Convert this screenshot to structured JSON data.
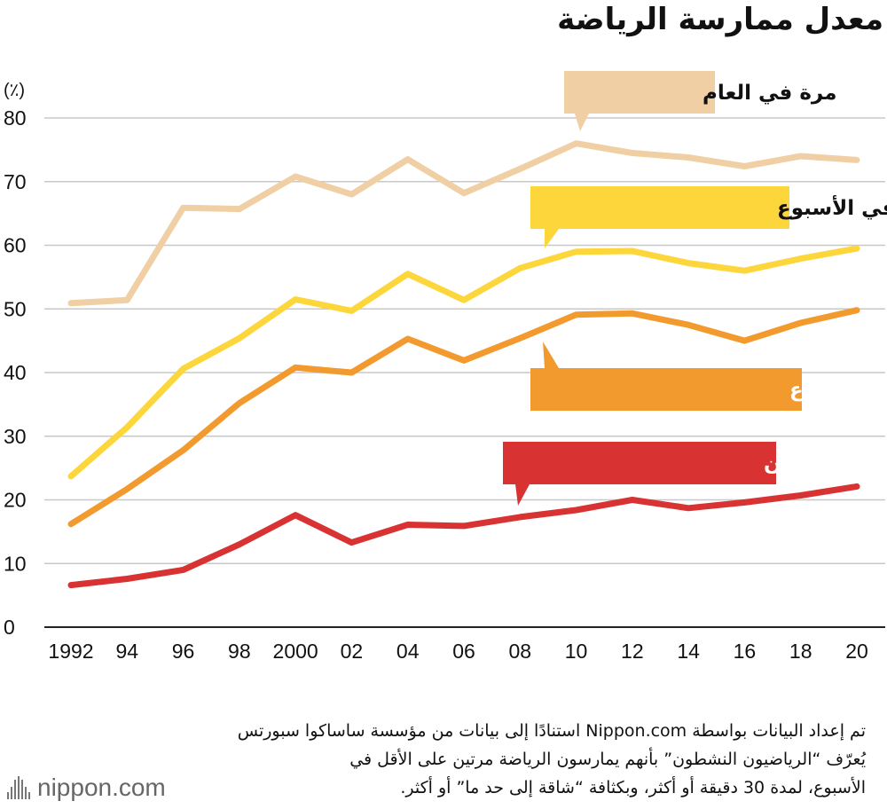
{
  "chart_data": {
    "type": "line",
    "title": "معدل ممارسة الرياضة",
    "ylabel": "(٪)",
    "ylim": [
      0,
      80
    ],
    "yticks": [
      0,
      10,
      20,
      30,
      40,
      50,
      60,
      70,
      80
    ],
    "x_tick_labels": [
      "1992",
      "94",
      "96",
      "98",
      "2000",
      "02",
      "04",
      "06",
      "08",
      "10",
      "12",
      "14",
      "16",
      "18",
      "20"
    ],
    "x": [
      1992,
      1994,
      1996,
      1998,
      2000,
      2002,
      2004,
      2006,
      2008,
      2010,
      2012,
      2014,
      2016,
      2018,
      2020
    ],
    "grid": true,
    "series": [
      {
        "name": "مرة في العام",
        "color": "#f0cfa4",
        "text_color": "#111111",
        "values": [
          50.9,
          51.4,
          65.9,
          65.7,
          70.8,
          68.0,
          73.5,
          68.2,
          72.0,
          76.0,
          74.5,
          73.8,
          72.4,
          74.0,
          73.4
        ]
      },
      {
        "name": "أكثر من مرة في الأسبوع",
        "color": "#fcd63a",
        "text_color": "#111111",
        "values": [
          23.7,
          31.4,
          40.6,
          45.4,
          51.5,
          49.7,
          55.5,
          51.4,
          56.4,
          59.0,
          59.1,
          57.2,
          56.0,
          57.9,
          59.5
        ]
      },
      {
        "name": "أكثر من مرتين في الأسبوع",
        "color": "#f39a2e",
        "text_color": "#ffffff",
        "values": [
          16.2,
          21.7,
          27.8,
          35.2,
          40.8,
          40.0,
          45.3,
          41.9,
          45.4,
          49.1,
          49.3,
          47.5,
          45.0,
          47.8,
          49.8
        ]
      },
      {
        "name": "السكان الرياضيون النشطون",
        "color": "#d93233",
        "text_color": "#ffffff",
        "values": [
          6.6,
          7.6,
          9.0,
          13.0,
          17.6,
          13.3,
          16.1,
          15.9,
          17.3,
          18.4,
          20.0,
          18.7,
          19.6,
          20.7,
          22.1
        ]
      }
    ]
  },
  "footnote": {
    "lines": [
      "تم إعداد البيانات بواسطة Nippon.com استنادًا إلى بيانات من مؤسسة ساساكوا سبورتس",
      "يُعرّف “الرياضيون النشطون” بأنهم يمارسون الرياضة مرتين على الأقل في",
      "الأسبوع، لمدة 30 دقيقة أو أكثر، وبكثافة “شاقة إلى حد ما” أو أكثر."
    ]
  },
  "brand": {
    "logo_text": "nippon.com",
    "logo_icon": "bars-logo-icon"
  }
}
